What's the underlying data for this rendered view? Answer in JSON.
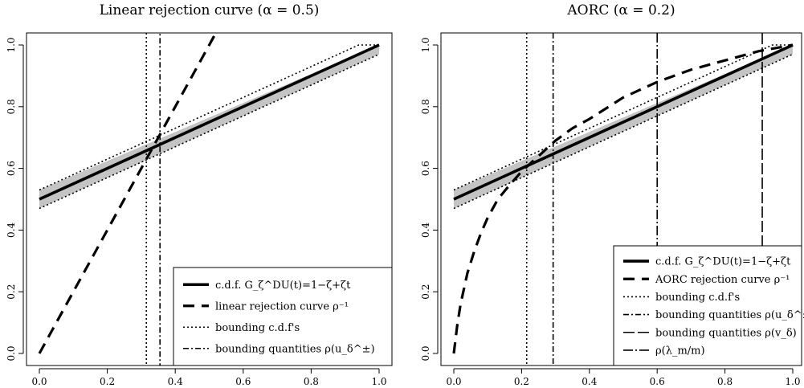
{
  "chart_data": [
    {
      "type": "line",
      "title": "Linear rejection curve (α = 0.5)",
      "xlim": [
        0,
        1
      ],
      "ylim": [
        0,
        1
      ],
      "x_ticks": [
        "0.0",
        "0.2",
        "0.4",
        "0.6",
        "0.8",
        "1.0"
      ],
      "y_ticks": [
        "0.0",
        "0.2",
        "0.4",
        "0.6",
        "0.8",
        "1.0"
      ],
      "legend_position": "bottom-right",
      "band": {
        "x": [
          0,
          1
        ],
        "lower": [
          0.47,
          0.97
        ],
        "upper": [
          0.53,
          1.0
        ]
      },
      "series": [
        {
          "name": "c.d.f. G_ζ^DU(t)=1−ζ+ζt",
          "style": "solid",
          "x": [
            0,
            1
          ],
          "y": [
            0.5,
            1.0
          ]
        },
        {
          "name": "linear rejection curve ρ⁻¹",
          "style": "dashed",
          "x": [
            0,
            0.1,
            0.2,
            0.3,
            0.4,
            0.5,
            0.52
          ],
          "y": [
            0.0,
            0.2,
            0.4,
            0.6,
            0.8,
            1.0,
            1.04
          ]
        },
        {
          "name": "bounding c.d.f's",
          "style": "dotted",
          "x": [
            0,
            0.94,
            1
          ],
          "y": [
            0.53,
            1.0,
            1.0
          ]
        },
        {
          "name": "",
          "style": "dotted",
          "x": [
            0,
            1
          ],
          "y": [
            0.47,
            0.97
          ]
        },
        {
          "name": "bounding quantities ρ(u_δ^±)",
          "style": "dashdot-vertical",
          "x": [
            0.355,
            0.355
          ],
          "y": [
            -0.05,
            1.05
          ]
        }
      ],
      "vlines": [
        {
          "x": 0.315,
          "style": "dotted"
        }
      ],
      "legend": [
        {
          "label": "c.d.f. G_ζ^DU(t)=1−ζ+ζt",
          "style": "solid"
        },
        {
          "label": "linear rejection curve ρ⁻¹",
          "style": "dashed"
        },
        {
          "label": "bounding c.d.f's",
          "style": "dotted"
        },
        {
          "label": "bounding quantities ρ(u_δ^±)",
          "style": "dashdot"
        }
      ]
    },
    {
      "type": "line",
      "title": "AORC (α = 0.2)",
      "xlim": [
        0,
        1
      ],
      "ylim": [
        0,
        1
      ],
      "x_ticks": [
        "0.0",
        "0.2",
        "0.4",
        "0.6",
        "0.8",
        "1.0"
      ],
      "y_ticks": [
        "0.0",
        "0.2",
        "0.4",
        "0.6",
        "0.8",
        "1.0"
      ],
      "legend_position": "bottom-right",
      "band": {
        "x": [
          0,
          1
        ],
        "lower": [
          0.47,
          0.97
        ],
        "upper": [
          0.53,
          1.0
        ]
      },
      "series": [
        {
          "name": "c.d.f. G_ζ^DU(t)=1−ζ+ζt",
          "style": "solid",
          "x": [
            0,
            1
          ],
          "y": [
            0.5,
            1.0
          ]
        },
        {
          "name": "AORC rejection curve ρ⁻¹",
          "style": "dashed",
          "x": [
            0,
            0.01,
            0.02,
            0.04,
            0.06,
            0.08,
            0.1,
            0.13,
            0.16,
            0.2,
            0.25,
            0.3,
            0.35,
            0.4,
            0.5,
            0.6,
            0.7,
            0.8,
            0.9,
            1.0
          ],
          "y": [
            0.0,
            0.09,
            0.16,
            0.26,
            0.33,
            0.39,
            0.44,
            0.5,
            0.54,
            0.59,
            0.64,
            0.69,
            0.73,
            0.76,
            0.83,
            0.88,
            0.92,
            0.95,
            0.98,
            1.0
          ]
        },
        {
          "name": "bounding c.d.f's",
          "style": "dotted",
          "x": [
            0,
            0.94,
            1
          ],
          "y": [
            0.53,
            1.0,
            1.0
          ]
        },
        {
          "name": "",
          "style": "dotted",
          "x": [
            0,
            1
          ],
          "y": [
            0.47,
            0.97
          ]
        }
      ],
      "vlines": [
        {
          "x": 0.215,
          "style": "dotted"
        },
        {
          "x": 0.293,
          "style": "dashdot"
        },
        {
          "x": 0.6,
          "style": "dashdot-long"
        },
        {
          "x": 0.91,
          "style": "longdash"
        }
      ],
      "legend": [
        {
          "label": "c.d.f. G_ζ^DU(t)=1−ζ+ζt",
          "style": "solid"
        },
        {
          "label": "AORC rejection curve ρ⁻¹",
          "style": "dashed"
        },
        {
          "label": "bounding c.d.f's",
          "style": "dotted"
        },
        {
          "label": "bounding quantities ρ(u_δ^±)",
          "style": "dashdot"
        },
        {
          "label": "bounding quantities ρ(v_δ)",
          "style": "longdash"
        },
        {
          "label": "ρ(λ_m/m)",
          "style": "dashdot-long"
        }
      ]
    }
  ]
}
